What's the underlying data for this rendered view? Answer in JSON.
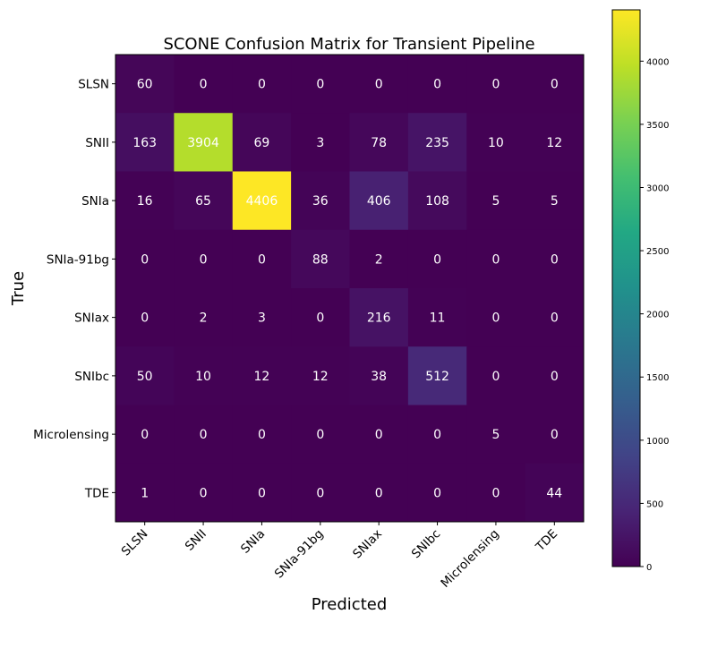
{
  "chart_data": {
    "type": "heatmap",
    "title": "SCONE Confusion Matrix for Transient Pipeline",
    "xlabel": "Predicted",
    "ylabel": "True",
    "x_categories": [
      "SLSN",
      "SNII",
      "SNIa",
      "SNIa-91bg",
      "SNIax",
      "SNIbc",
      "Microlensing",
      "TDE"
    ],
    "y_categories": [
      "SLSN",
      "SNII",
      "SNIa",
      "SNIa-91bg",
      "SNIax",
      "SNIbc",
      "Microlensing",
      "TDE"
    ],
    "values": [
      [
        60,
        0,
        0,
        0,
        0,
        0,
        0,
        0
      ],
      [
        163,
        3904,
        69,
        3,
        78,
        235,
        10,
        12
      ],
      [
        16,
        65,
        4406,
        36,
        406,
        108,
        5,
        5
      ],
      [
        0,
        0,
        0,
        88,
        2,
        0,
        0,
        0
      ],
      [
        0,
        2,
        3,
        0,
        216,
        11,
        0,
        0
      ],
      [
        50,
        10,
        12,
        12,
        38,
        512,
        0,
        0
      ],
      [
        0,
        0,
        0,
        0,
        0,
        0,
        5,
        0
      ],
      [
        1,
        0,
        0,
        0,
        0,
        0,
        0,
        44
      ]
    ],
    "colormap": "viridis",
    "colorbar": {
      "range": [
        0,
        4406
      ],
      "ticks": [
        0,
        500,
        1000,
        1500,
        2000,
        2500,
        3000,
        3500,
        4000
      ]
    },
    "grid": false
  }
}
